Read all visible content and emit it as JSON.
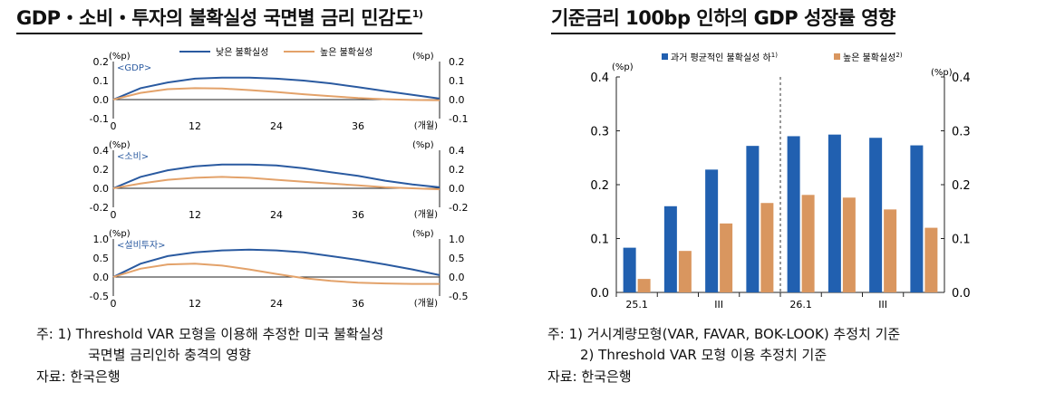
{
  "left_panel": {
    "title": "GDP・소비・투자의 불확실성 국면별 금리 민감도",
    "title_sup": "1)",
    "notes": [
      "주: 1) Threshold VAR 모형을 이용해 추정한 미국 불확실성",
      "국면별 금리인하 충격의 영향",
      "자료: 한국은행"
    ]
  },
  "right_panel": {
    "title": "기준금리 100bp 인하의 GDP 성장률 영향",
    "notes": [
      "주: 1) 거시계량모형(VAR, FAVAR, BOK-LOOK) 추정치 기준",
      "2) Threshold VAR 모형 이용 추정치 기준",
      "자료: 한국은행"
    ]
  },
  "chart_data": [
    {
      "type": "line",
      "panel": "GDP",
      "label": "<GDP>",
      "unit_left": "(%p)",
      "unit_right": "(%p)",
      "xlabel": "(개월)",
      "x_ticks": [
        0,
        12,
        24,
        36
      ],
      "y_ticks": [
        "0.2",
        "0.1",
        "0.0",
        "-0.1"
      ],
      "xlim": [
        0,
        48
      ],
      "ylim": [
        -0.1,
        0.2
      ],
      "legend": [
        "낮은 불확실성",
        "높은 불확실성"
      ],
      "colors": [
        "#2a5aa0",
        "#e3a26a"
      ],
      "x": [
        0,
        4,
        8,
        12,
        16,
        20,
        24,
        28,
        32,
        36,
        40,
        44,
        48
      ],
      "series": [
        {
          "name": "낮은 불확실성",
          "values": [
            0.0,
            0.06,
            0.09,
            0.11,
            0.115,
            0.115,
            0.11,
            0.1,
            0.085,
            0.065,
            0.045,
            0.025,
            0.005
          ]
        },
        {
          "name": "높은 불확실성",
          "values": [
            0.0,
            0.035,
            0.055,
            0.06,
            0.058,
            0.05,
            0.04,
            0.028,
            0.018,
            0.008,
            0.002,
            -0.002,
            -0.004
          ]
        }
      ]
    },
    {
      "type": "line",
      "panel": "소비",
      "label": "<소비>",
      "unit_left": "(%p)",
      "unit_right": "(%p)",
      "xlabel": "(개월)",
      "x_ticks": [
        0,
        12,
        24,
        36
      ],
      "y_ticks": [
        "0.4",
        "0.2",
        "0.0",
        "-0.2"
      ],
      "xlim": [
        0,
        48
      ],
      "ylim": [
        -0.2,
        0.4
      ],
      "legend": [
        "낮은 불확실성",
        "높은 불확실성"
      ],
      "colors": [
        "#2a5aa0",
        "#e3a26a"
      ],
      "x": [
        0,
        4,
        8,
        12,
        16,
        20,
        24,
        28,
        32,
        36,
        40,
        44,
        48
      ],
      "series": [
        {
          "name": "낮은 불확실성",
          "values": [
            0.0,
            0.12,
            0.19,
            0.23,
            0.25,
            0.25,
            0.24,
            0.21,
            0.17,
            0.13,
            0.08,
            0.04,
            0.01
          ]
        },
        {
          "name": "높은 불확실성",
          "values": [
            0.0,
            0.05,
            0.09,
            0.11,
            0.12,
            0.11,
            0.09,
            0.07,
            0.05,
            0.03,
            0.01,
            0.0,
            -0.01
          ]
        }
      ]
    },
    {
      "type": "line",
      "panel": "설비투자",
      "label": "<설비투자>",
      "unit_left": "(%p)",
      "unit_right": "(%p)",
      "xlabel": "(개월)",
      "x_ticks": [
        0,
        12,
        24,
        36
      ],
      "y_ticks": [
        "1.0",
        "0.5",
        "0.0",
        "-0.5"
      ],
      "xlim": [
        0,
        48
      ],
      "ylim": [
        -0.5,
        1.0
      ],
      "legend": [
        "낮은 불확실성",
        "높은 불확실성"
      ],
      "colors": [
        "#2a5aa0",
        "#e3a26a"
      ],
      "x": [
        0,
        4,
        8,
        12,
        16,
        20,
        24,
        28,
        32,
        36,
        40,
        44,
        48
      ],
      "series": [
        {
          "name": "낮은 불확실성",
          "values": [
            0.0,
            0.35,
            0.55,
            0.65,
            0.7,
            0.72,
            0.7,
            0.65,
            0.55,
            0.45,
            0.33,
            0.2,
            0.05
          ]
        },
        {
          "name": "높은 불확실성",
          "values": [
            0.0,
            0.22,
            0.33,
            0.35,
            0.3,
            0.2,
            0.08,
            -0.03,
            -0.1,
            -0.15,
            -0.17,
            -0.18,
            -0.18
          ]
        }
      ]
    },
    {
      "type": "bar",
      "panel": "GDP 성장률 영향",
      "unit_left": "(%p)",
      "unit_right": "(%p)",
      "categories": [
        "25.1",
        "",
        "III",
        "",
        "26.1",
        "",
        "III",
        ""
      ],
      "ylim": [
        0,
        0.4
      ],
      "y_ticks": [
        "0.4",
        "0.3",
        "0.2",
        "0.1",
        "0.0"
      ],
      "colors": [
        "#2160b0",
        "#d9965f"
      ],
      "series": [
        {
          "name": "과거 평균적인 불확실성 하",
          "sup": "1)",
          "values": [
            0.083,
            0.16,
            0.228,
            0.272,
            0.29,
            0.293,
            0.287,
            0.273
          ]
        },
        {
          "name": "높은 불확실성",
          "sup": "2)",
          "values": [
            0.025,
            0.077,
            0.128,
            0.166,
            0.181,
            0.176,
            0.154,
            0.12
          ]
        }
      ]
    }
  ]
}
